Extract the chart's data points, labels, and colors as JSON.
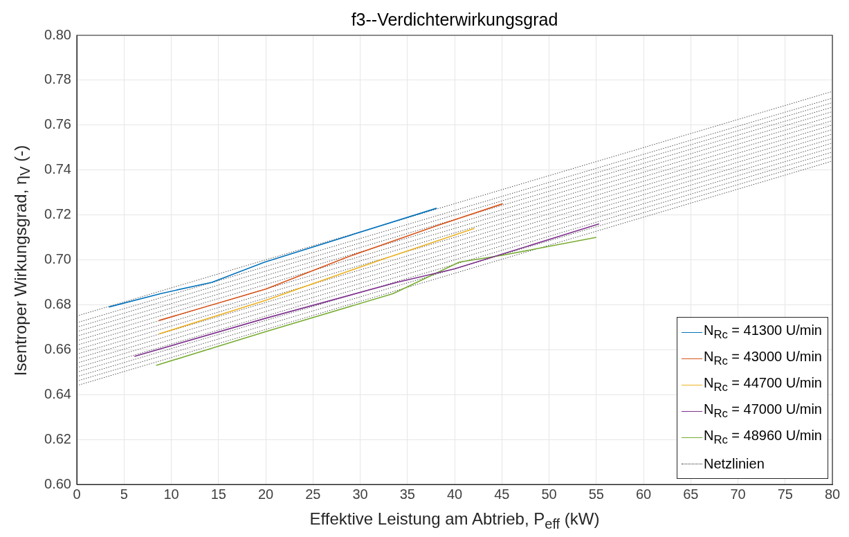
{
  "chart_data": {
    "type": "line",
    "title": "f3--Verdichterwirkungsgrad",
    "xlabel": "Effektive Leistung am Abtrieb, P$_{eff}$ (kW)",
    "ylabel": "Isentroper Wirkungsgrad, η$_{V}$ (-)",
    "xlim": [
      0,
      80
    ],
    "xticks": [
      0,
      5,
      10,
      15,
      20,
      25,
      30,
      35,
      40,
      45,
      50,
      55,
      60,
      65,
      70,
      75,
      80
    ],
    "ylim": [
      0.6,
      0.8
    ],
    "yticks": [
      {
        "value": 0.6,
        "label": "0.60"
      },
      0.62,
      0.64,
      0.66,
      0.68,
      {
        "value": 0.7,
        "label": "0.70"
      },
      0.72,
      0.74,
      0.76,
      0.78,
      {
        "value": 0.8,
        "label": "0.80"
      }
    ],
    "grid": true,
    "legend": "bottom right",
    "marker": "none",
    "series": [
      {
        "name": "N$_{Rc}$ = 41300 U/min",
        "color": "#0072bd",
        "line_style": "solid",
        "x": [
          3.4,
          8.9,
          14.3,
          19.9,
          38.1
        ],
        "values": [
          0.679,
          0.685,
          0.69,
          0.699,
          0.723
        ]
      },
      {
        "name": "N$_{Rc}$ = 43000 U/min",
        "color": "#d95319",
        "line_style": "solid",
        "x": [
          8.7,
          20,
          28.5,
          38,
          45.1
        ],
        "values": [
          0.673,
          0.687,
          0.701,
          0.715,
          0.725
        ]
      },
      {
        "name": "N$_{Rc}$ = 44700 U/min",
        "color": "#edb120",
        "line_style": "solid",
        "x": [
          8.7,
          20,
          32.2,
          42.1
        ],
        "values": [
          0.667,
          0.682,
          0.7,
          0.714
        ]
      },
      {
        "name": "N$_{Rc}$ = 47000 U/min",
        "color": "#7e2f8e",
        "line_style": "solid",
        "x": [
          6.1,
          20,
          33.9,
          40,
          55.3
        ],
        "values": [
          0.657,
          0.674,
          0.69,
          0.696,
          0.716
        ]
      },
      {
        "name": "N$_{Rc}$ = 48960 U/min",
        "color": "#77ac30",
        "line_style": "solid",
        "x": [
          8.4,
          20,
          33.5,
          40.5,
          45,
          55
        ],
        "values": [
          0.653,
          0.668,
          0.685,
          0.699,
          0.702,
          0.71
        ]
      },
      {
        "name": "Netzlinien",
        "color": "#262626",
        "line_style": "dotted",
        "x": [
          0,
          80
        ],
        "values": [
          0.644,
          0.744
        ]
      },
      {
        "color": "#262626",
        "line_style": "dotted",
        "x": [
          0,
          80
        ],
        "values": [
          0.646,
          0.746
        ]
      },
      {
        "color": "#262626",
        "line_style": "dotted",
        "x": [
          0,
          80
        ],
        "values": [
          0.648,
          0.748
        ]
      },
      {
        "color": "#262626",
        "line_style": "dotted",
        "x": [
          0,
          80
        ],
        "values": [
          0.65,
          0.75
        ]
      },
      {
        "color": "#262626",
        "line_style": "dotted",
        "x": [
          0,
          80
        ],
        "values": [
          0.652,
          0.752
        ]
      },
      {
        "color": "#262626",
        "line_style": "dotted",
        "x": [
          0,
          80
        ],
        "values": [
          0.654,
          0.754
        ]
      },
      {
        "color": "#262626",
        "line_style": "dotted",
        "x": [
          0,
          80
        ],
        "values": [
          0.656,
          0.756
        ]
      },
      {
        "color": "#262626",
        "line_style": "dotted",
        "x": [
          0,
          80
        ],
        "values": [
          0.658,
          0.758
        ]
      },
      {
        "color": "#262626",
        "line_style": "dotted",
        "x": [
          0,
          80
        ],
        "values": [
          0.66,
          0.76
        ]
      },
      {
        "color": "#262626",
        "line_style": "dotted",
        "x": [
          0,
          80
        ],
        "values": [
          0.662,
          0.762
        ]
      },
      {
        "color": "#262626",
        "line_style": "dotted",
        "x": [
          0,
          80
        ],
        "values": [
          0.664,
          0.764
        ]
      },
      {
        "color": "#262626",
        "line_style": "dotted",
        "x": [
          0,
          80
        ],
        "values": [
          0.666,
          0.766
        ]
      },
      {
        "color": "#262626",
        "line_style": "dotted",
        "x": [
          0,
          80
        ],
        "values": [
          0.668,
          0.768
        ]
      },
      {
        "color": "#262626",
        "line_style": "dotted",
        "x": [
          0,
          80
        ],
        "values": [
          0.67,
          0.77
        ]
      },
      {
        "color": "#262626",
        "line_style": "dotted",
        "x": [
          0,
          80
        ],
        "values": [
          0.672,
          0.772
        ]
      },
      {
        "color": "#262626",
        "line_style": "dotted",
        "x": [
          0,
          80
        ],
        "values": [
          0.675,
          0.775
        ]
      }
    ]
  }
}
